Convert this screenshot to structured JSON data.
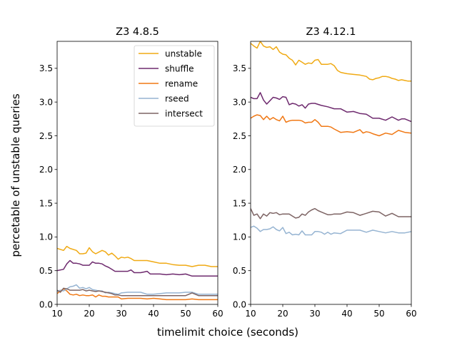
{
  "figure": {
    "ylabel": "percetable of unstable queries",
    "xlabel": "timelimit choice (seconds)"
  },
  "colors": {
    "unstable": "#f0aa14",
    "shuffle": "#6e2a6e",
    "rename": "#f07814",
    "rseed": "#96b4d2",
    "intersect": "#7d6464"
  },
  "chart_data": [
    {
      "type": "line",
      "title": "Z3 4.8.5",
      "xlim": [
        10,
        60
      ],
      "ylim": [
        0,
        3.9
      ],
      "xticks": [
        10,
        20,
        30,
        40,
        50,
        60
      ],
      "yticks": [
        0.0,
        0.5,
        1.0,
        1.5,
        2.0,
        2.5,
        3.0,
        3.5
      ],
      "ytick_labels": [
        "0.0",
        "0.5",
        "1.0",
        "1.5",
        "2.0",
        "2.5",
        "3.0",
        "3.5"
      ],
      "legend": {
        "placement": "top-right",
        "entries": [
          "unstable",
          "shuffle",
          "rename",
          "rseed",
          "intersect"
        ]
      },
      "series": [
        {
          "name": "unstable",
          "x": [
            10,
            12,
            13,
            14,
            16,
            17,
            18,
            19,
            20,
            21,
            22,
            24,
            25,
            26,
            27,
            28,
            29,
            30,
            31,
            32,
            33,
            34,
            35,
            38,
            40,
            42,
            44,
            46,
            48,
            50,
            52,
            54,
            56,
            58,
            60
          ],
          "y": [
            0.83,
            0.8,
            0.86,
            0.83,
            0.8,
            0.75,
            0.75,
            0.76,
            0.84,
            0.78,
            0.75,
            0.8,
            0.78,
            0.73,
            0.76,
            0.72,
            0.67,
            0.7,
            0.69,
            0.7,
            0.68,
            0.65,
            0.65,
            0.65,
            0.63,
            0.61,
            0.61,
            0.59,
            0.58,
            0.58,
            0.56,
            0.58,
            0.58,
            0.56,
            0.56
          ]
        },
        {
          "name": "shuffle",
          "x": [
            10,
            12,
            13,
            14,
            15,
            16,
            17,
            18,
            19,
            20,
            21,
            22,
            23,
            24,
            25,
            26,
            27,
            28,
            29,
            30,
            32,
            33,
            34,
            35,
            36,
            37,
            38,
            39,
            40,
            42,
            44,
            46,
            48,
            50,
            52,
            54,
            56,
            58,
            60
          ],
          "y": [
            0.5,
            0.52,
            0.6,
            0.65,
            0.61,
            0.61,
            0.6,
            0.58,
            0.58,
            0.58,
            0.63,
            0.61,
            0.61,
            0.6,
            0.57,
            0.55,
            0.52,
            0.49,
            0.49,
            0.49,
            0.49,
            0.51,
            0.47,
            0.47,
            0.47,
            0.48,
            0.49,
            0.45,
            0.45,
            0.45,
            0.44,
            0.45,
            0.44,
            0.45,
            0.42,
            0.42,
            0.42,
            0.42,
            0.42
          ]
        },
        {
          "name": "rename",
          "x": [
            10,
            11,
            12,
            13,
            14,
            15,
            16,
            17,
            18,
            19,
            20,
            21,
            22,
            23,
            24,
            25,
            26,
            27,
            28,
            29,
            30,
            32,
            34,
            36,
            38,
            40,
            42,
            44,
            46,
            48,
            50,
            52,
            54,
            56,
            58,
            60
          ],
          "y": [
            0.16,
            0.2,
            0.23,
            0.2,
            0.15,
            0.14,
            0.15,
            0.13,
            0.14,
            0.13,
            0.13,
            0.14,
            0.11,
            0.14,
            0.12,
            0.12,
            0.11,
            0.11,
            0.11,
            0.11,
            0.08,
            0.09,
            0.09,
            0.09,
            0.08,
            0.09,
            0.08,
            0.07,
            0.07,
            0.07,
            0.07,
            0.08,
            0.07,
            0.07,
            0.07,
            0.07
          ]
        },
        {
          "name": "rseed",
          "x": [
            10,
            11,
            12,
            13,
            14,
            15,
            16,
            17,
            18,
            19,
            20,
            21,
            22,
            23,
            24,
            25,
            26,
            27,
            28,
            29,
            30,
            32,
            34,
            36,
            38,
            40,
            42,
            44,
            46,
            48,
            50,
            52,
            54,
            56,
            58,
            60
          ],
          "y": [
            0.19,
            0.21,
            0.2,
            0.23,
            0.26,
            0.27,
            0.29,
            0.24,
            0.25,
            0.23,
            0.25,
            0.22,
            0.21,
            0.2,
            0.2,
            0.17,
            0.18,
            0.17,
            0.16,
            0.15,
            0.17,
            0.18,
            0.18,
            0.18,
            0.15,
            0.15,
            0.16,
            0.17,
            0.17,
            0.17,
            0.18,
            0.18,
            0.15,
            0.15,
            0.15,
            0.15
          ]
        },
        {
          "name": "intersect",
          "x": [
            10,
            11,
            12,
            13,
            14,
            15,
            16,
            17,
            18,
            19,
            20,
            21,
            22,
            23,
            24,
            25,
            26,
            27,
            28,
            29,
            30,
            32,
            34,
            36,
            38,
            40,
            42,
            44,
            46,
            48,
            50,
            52,
            54,
            56,
            58,
            60
          ],
          "y": [
            0.21,
            0.18,
            0.24,
            0.23,
            0.21,
            0.21,
            0.21,
            0.21,
            0.22,
            0.2,
            0.21,
            0.2,
            0.19,
            0.2,
            0.19,
            0.18,
            0.17,
            0.16,
            0.14,
            0.14,
            0.13,
            0.13,
            0.13,
            0.13,
            0.13,
            0.13,
            0.13,
            0.13,
            0.13,
            0.13,
            0.13,
            0.17,
            0.13,
            0.13,
            0.13,
            0.13
          ]
        }
      ]
    },
    {
      "type": "line",
      "title": "Z3 4.12.1",
      "xlim": [
        10,
        60
      ],
      "ylim": [
        0,
        3.9
      ],
      "xticks": [
        10,
        20,
        30,
        40,
        50,
        60
      ],
      "yticks": [
        0.0,
        0.5,
        1.0,
        1.5,
        2.0,
        2.5,
        3.0,
        3.5
      ],
      "ytick_labels": [
        "0.0",
        "0.5",
        "1.0",
        "1.5",
        "2.0",
        "2.5",
        "3.0",
        "3.5"
      ],
      "series": [
        {
          "name": "unstable",
          "x": [
            10,
            11,
            12,
            13,
            14,
            15,
            16,
            17,
            18,
            19,
            20,
            21,
            22,
            23,
            24,
            25,
            26,
            27,
            28,
            29,
            30,
            31,
            32,
            33,
            34,
            35,
            36,
            37,
            38,
            39,
            40,
            42,
            44,
            46,
            47,
            48,
            49,
            50,
            51,
            52,
            53,
            54,
            55,
            56,
            57,
            58,
            59,
            60
          ],
          "y": [
            3.87,
            3.83,
            3.8,
            3.9,
            3.83,
            3.81,
            3.82,
            3.78,
            3.82,
            3.74,
            3.71,
            3.7,
            3.65,
            3.62,
            3.55,
            3.62,
            3.59,
            3.56,
            3.58,
            3.57,
            3.62,
            3.63,
            3.56,
            3.56,
            3.56,
            3.57,
            3.54,
            3.47,
            3.44,
            3.43,
            3.42,
            3.41,
            3.4,
            3.38,
            3.34,
            3.33,
            3.35,
            3.36,
            3.38,
            3.38,
            3.37,
            3.35,
            3.34,
            3.32,
            3.33,
            3.32,
            3.31,
            3.31
          ]
        },
        {
          "name": "shuffle",
          "x": [
            10,
            11,
            12,
            13,
            14,
            15,
            16,
            17,
            18,
            19,
            20,
            21,
            22,
            23,
            24,
            25,
            26,
            27,
            28,
            29,
            30,
            32,
            34,
            36,
            38,
            40,
            42,
            44,
            46,
            48,
            50,
            52,
            54,
            56,
            57,
            58,
            59,
            60
          ],
          "y": [
            3.07,
            3.05,
            3.05,
            3.14,
            3.03,
            2.97,
            3.02,
            3.07,
            3.06,
            3.04,
            3.08,
            3.07,
            2.96,
            2.98,
            2.97,
            2.94,
            2.96,
            2.91,
            2.97,
            2.98,
            2.98,
            2.95,
            2.93,
            2.9,
            2.9,
            2.85,
            2.86,
            2.83,
            2.82,
            2.76,
            2.76,
            2.73,
            2.78,
            2.73,
            2.75,
            2.75,
            2.73,
            2.71
          ]
        },
        {
          "name": "rename",
          "x": [
            10,
            11,
            12,
            13,
            14,
            15,
            16,
            17,
            18,
            19,
            20,
            21,
            22,
            23,
            24,
            25,
            26,
            27,
            28,
            29,
            30,
            31,
            32,
            33,
            34,
            35,
            36,
            38,
            40,
            42,
            44,
            45,
            46,
            47,
            48,
            50,
            52,
            54,
            56,
            58,
            60
          ],
          "y": [
            2.76,
            2.79,
            2.81,
            2.8,
            2.74,
            2.79,
            2.74,
            2.77,
            2.74,
            2.72,
            2.79,
            2.7,
            2.72,
            2.73,
            2.73,
            2.73,
            2.72,
            2.69,
            2.7,
            2.7,
            2.74,
            2.7,
            2.64,
            2.64,
            2.64,
            2.63,
            2.6,
            2.55,
            2.56,
            2.55,
            2.59,
            2.54,
            2.56,
            2.55,
            2.53,
            2.5,
            2.54,
            2.52,
            2.58,
            2.55,
            2.54
          ]
        },
        {
          "name": "rseed",
          "x": [
            10,
            11,
            12,
            13,
            14,
            15,
            16,
            17,
            18,
            19,
            20,
            21,
            22,
            23,
            24,
            25,
            26,
            27,
            28,
            29,
            30,
            31,
            32,
            33,
            34,
            35,
            36,
            38,
            40,
            42,
            44,
            46,
            48,
            50,
            52,
            54,
            56,
            58,
            60
          ],
          "y": [
            1.14,
            1.16,
            1.13,
            1.08,
            1.11,
            1.11,
            1.12,
            1.15,
            1.11,
            1.09,
            1.14,
            1.05,
            1.07,
            1.03,
            1.04,
            1.03,
            1.09,
            1.03,
            1.03,
            1.03,
            1.08,
            1.08,
            1.07,
            1.04,
            1.07,
            1.04,
            1.06,
            1.05,
            1.1,
            1.1,
            1.1,
            1.07,
            1.1,
            1.08,
            1.06,
            1.08,
            1.06,
            1.06,
            1.08
          ]
        },
        {
          "name": "intersect",
          "x": [
            10,
            11,
            12,
            13,
            14,
            15,
            16,
            17,
            18,
            19,
            20,
            21,
            22,
            23,
            24,
            25,
            26,
            27,
            28,
            29,
            30,
            31,
            32,
            33,
            34,
            35,
            36,
            38,
            40,
            42,
            44,
            46,
            48,
            50,
            52,
            54,
            56,
            58,
            60
          ],
          "y": [
            1.42,
            1.32,
            1.34,
            1.27,
            1.34,
            1.31,
            1.36,
            1.35,
            1.36,
            1.33,
            1.34,
            1.34,
            1.34,
            1.31,
            1.28,
            1.29,
            1.34,
            1.32,
            1.37,
            1.4,
            1.42,
            1.39,
            1.37,
            1.35,
            1.33,
            1.33,
            1.34,
            1.34,
            1.37,
            1.36,
            1.32,
            1.35,
            1.38,
            1.37,
            1.31,
            1.35,
            1.3,
            1.3,
            1.3
          ]
        }
      ]
    }
  ]
}
